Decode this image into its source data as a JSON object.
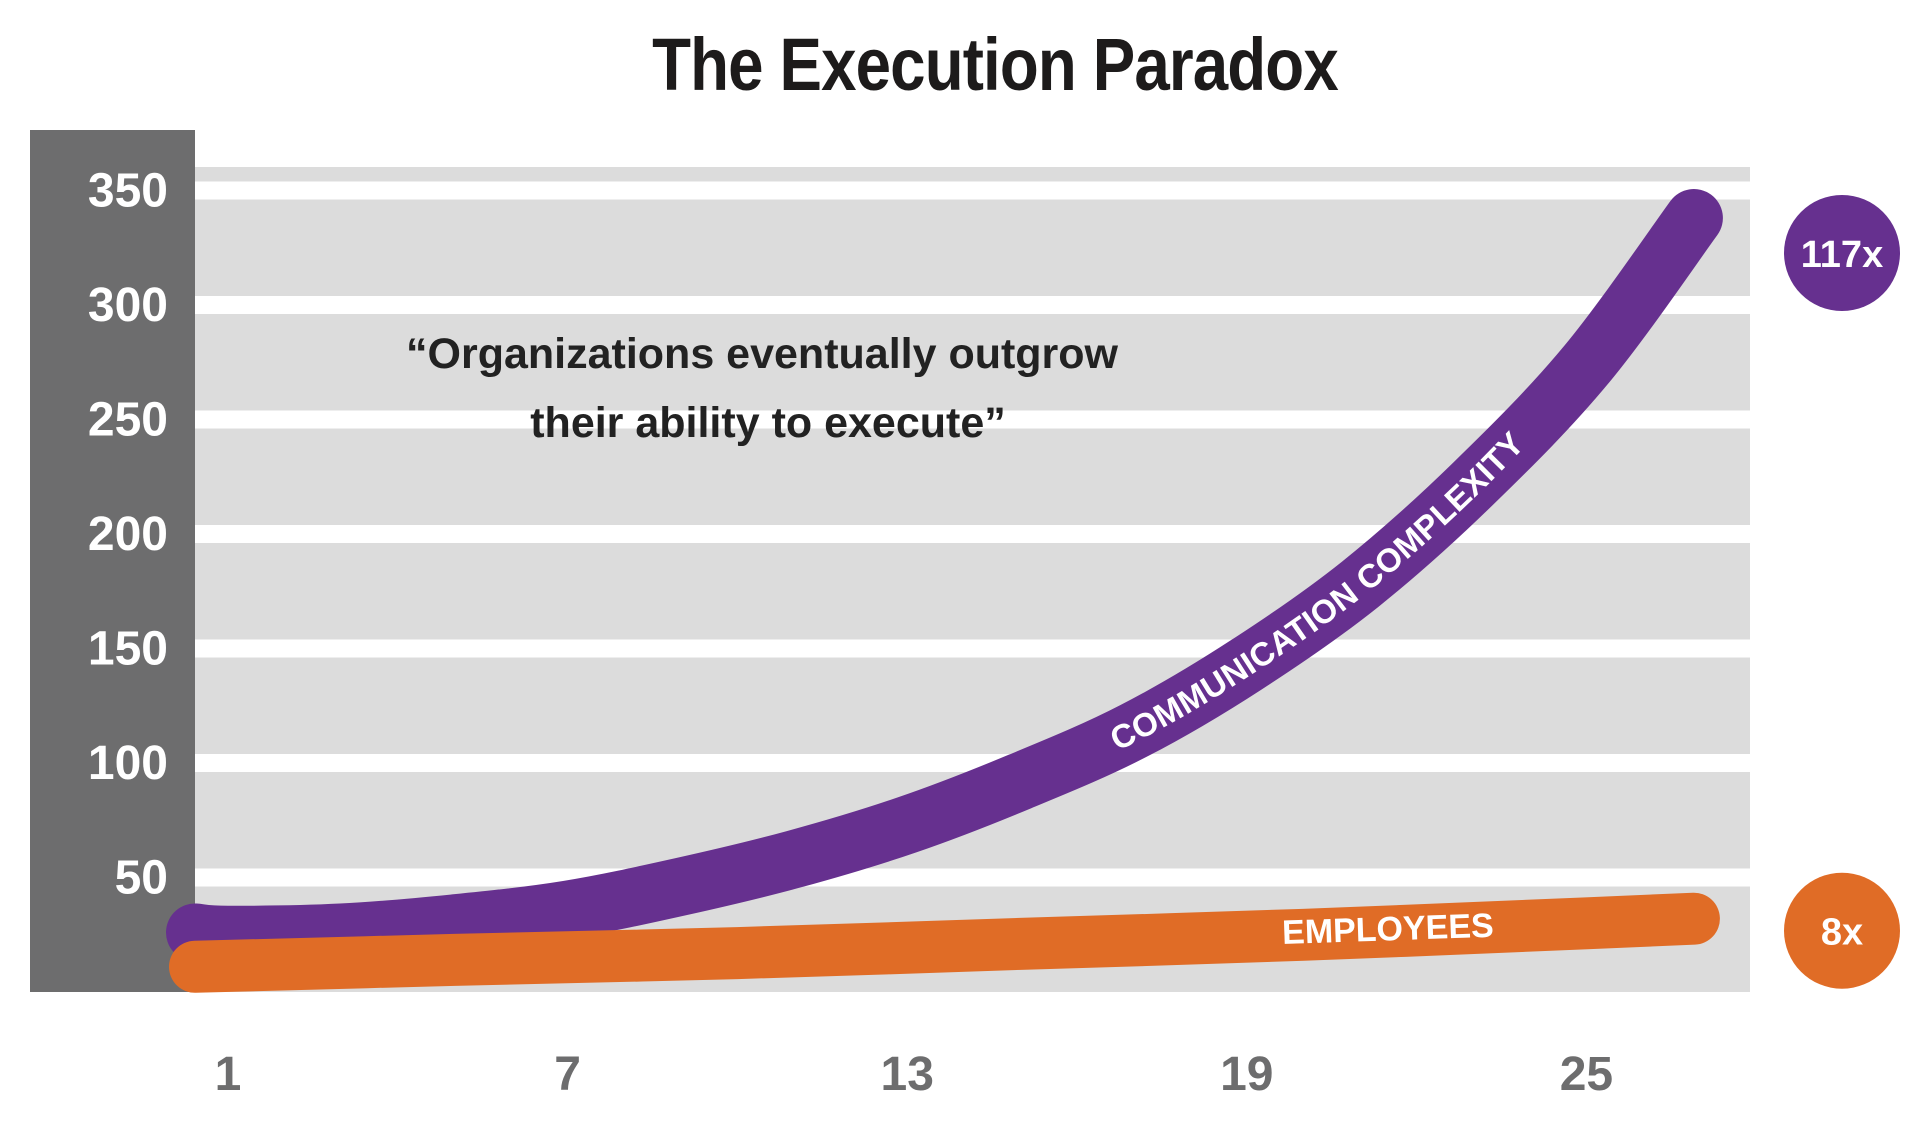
{
  "chart_data": {
    "type": "line",
    "title": "The Execution Paradox",
    "annotation": "“Organizations eventually outgrow their ability to execute”",
    "annotation_lines": [
      "“Organizations eventually outgrow",
      "their ability to execute”"
    ],
    "xlabel": "",
    "ylabel": "",
    "x_ticks": [
      1,
      7,
      13,
      19,
      25
    ],
    "y_ticks": [
      50,
      100,
      150,
      200,
      250,
      300,
      350
    ],
    "xlim": [
      0,
      27
    ],
    "ylim": [
      0,
      360
    ],
    "grid": true,
    "series": [
      {
        "name": "COMMUNICATION COMPLEXITY",
        "color": "#66308f",
        "end_label": "117x",
        "x": [
          0,
          1,
          3,
          5,
          7,
          9,
          11,
          13,
          15,
          17,
          19,
          21,
          23,
          25,
          26.9
        ],
        "values": [
          26,
          25,
          26,
          30,
          36,
          46,
          58,
          73,
          92,
          114,
          143,
          178,
          222,
          274,
          338
        ]
      },
      {
        "name": "EMPLOYEES",
        "color": "#e06c26",
        "end_label": "8x",
        "x": [
          0,
          5,
          10,
          15,
          20,
          25,
          26.9
        ],
        "values": [
          11,
          14,
          17,
          21,
          25,
          30,
          32
        ]
      }
    ]
  }
}
